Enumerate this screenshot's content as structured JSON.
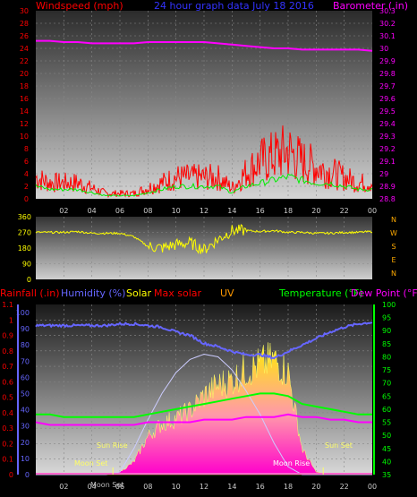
{
  "page": {
    "title": "24 hour graph data  July 18 2016"
  },
  "panel1": {
    "left_label": "Windspeed (mph)",
    "right_label": "Barometer (.in)",
    "left_ticks": [
      "0",
      "2",
      "4",
      "6",
      "8",
      "10",
      "12",
      "14",
      "16",
      "18",
      "20",
      "22",
      "24",
      "26",
      "28",
      "30"
    ],
    "right_ticks": [
      "28.8",
      "28.9",
      "29",
      "29.1",
      "29.2",
      "29.3",
      "29.4",
      "29.5",
      "29.6",
      "29.7",
      "29.8",
      "29.9",
      "30",
      "30.1",
      "30.2",
      "30.3"
    ],
    "x_ticks": [
      "02",
      "04",
      "06",
      "08",
      "10",
      "12",
      "14",
      "16",
      "18",
      "20",
      "22",
      "00"
    ]
  },
  "panel2": {
    "left_ticks": [
      "0",
      "90",
      "180",
      "270",
      "360"
    ],
    "compass": [
      "N",
      "W",
      "S",
      "E",
      "N"
    ]
  },
  "panel3": {
    "header_rainfall": "Rainfall (.in)",
    "header_humidity": "Humidity (%)",
    "header_solar": "Solar",
    "header_maxsolar": "Max solar",
    "header_uv": "UV",
    "header_temperature": "Temperature (°F)",
    "header_dewpoint": "Dew Point (°F)",
    "rain_ticks": [
      "0",
      "0.1",
      "0.2",
      "0.3",
      "0.4",
      "0.5",
      "0.6",
      "0.7",
      "0.8",
      "0.9",
      "1",
      "1.1"
    ],
    "hum_ticks": [
      "0",
      "10",
      "20",
      "30",
      "40",
      "50",
      "60",
      "70",
      "80",
      "90",
      "100"
    ],
    "temp_ticks": [
      "35",
      "40",
      "45",
      "50",
      "55",
      "60",
      "65",
      "70",
      "75",
      "80",
      "85",
      "90",
      "95",
      "100"
    ],
    "x_ticks": [
      "02",
      "04",
      "06",
      "08",
      "10",
      "12",
      "14",
      "16",
      "18",
      "20",
      "22",
      "00"
    ],
    "annotations": {
      "sun_rise": "Sun Rise",
      "sun_set": "Sun Set",
      "moon_set_left": "Moon Set",
      "moon_rise": "Moon Rise",
      "moon_set_x": "Moon Set"
    }
  },
  "colors": {
    "wind": "#ff0000",
    "wind_avg": "#00ee00",
    "barometer": "#ff00ff",
    "direction": "#ffff00",
    "humidity": "#6666ff",
    "temperature": "#00ff00",
    "dewpoint": "#ff00ff",
    "solar": "#ffff00",
    "maxsolar": "#ccccff",
    "uv": "#ff00ff",
    "rain": "#ff66cc"
  },
  "chart_data": [
    {
      "type": "line",
      "name": "wind_barometer",
      "x_hours": [
        0,
        1,
        2,
        3,
        4,
        5,
        6,
        7,
        8,
        9,
        10,
        11,
        12,
        13,
        14,
        15,
        16,
        17,
        18,
        19,
        20,
        21,
        22,
        23,
        24
      ],
      "series": [
        {
          "name": "Windspeed (mph)",
          "axis": "left",
          "values": [
            4,
            3,
            3,
            3,
            2,
            1,
            1,
            1,
            2,
            3,
            4,
            4,
            4,
            4,
            2,
            5,
            7,
            8,
            9,
            7,
            6,
            5,
            4,
            3,
            3
          ]
        },
        {
          "name": "avg",
          "axis": "left",
          "values": [
            2,
            1.5,
            1.5,
            1.5,
            1,
            0.5,
            0.5,
            0.5,
            1,
            1.5,
            2,
            2,
            2,
            2,
            1,
            2,
            2.5,
            3,
            3.5,
            3,
            2.5,
            2.5,
            2,
            1.5,
            1.5
          ]
        },
        {
          "name": "Barometer (.in)",
          "axis": "right",
          "values": [
            30.06,
            30.06,
            30.05,
            30.05,
            30.04,
            30.04,
            30.04,
            30.04,
            30.05,
            30.05,
            30.05,
            30.05,
            30.05,
            30.04,
            30.03,
            30.02,
            30.01,
            30.0,
            30.0,
            29.99,
            29.99,
            29.99,
            29.99,
            29.99,
            29.98
          ]
        }
      ],
      "ylim_left": [
        0,
        30
      ],
      "ylim_right": [
        28.8,
        30.3
      ]
    },
    {
      "type": "line",
      "name": "wind_direction",
      "x_hours": [
        0,
        1,
        2,
        3,
        4,
        5,
        6,
        7,
        8,
        9,
        10,
        11,
        12,
        13,
        14,
        15,
        16,
        17,
        18,
        19,
        20,
        21,
        22,
        23,
        24
      ],
      "series": [
        {
          "name": "direction",
          "values": [
            270,
            270,
            270,
            275,
            265,
            265,
            265,
            245,
            190,
            180,
            200,
            210,
            170,
            230,
            280,
            280,
            275,
            280,
            270,
            270,
            265,
            265,
            270,
            270,
            275
          ]
        }
      ],
      "ylim": [
        0,
        360
      ]
    },
    {
      "type": "area",
      "name": "weather",
      "x_hours": [
        0,
        1,
        2,
        3,
        4,
        5,
        6,
        7,
        8,
        9,
        10,
        11,
        12,
        13,
        14,
        15,
        16,
        17,
        18,
        19,
        20,
        21,
        22,
        23,
        24
      ],
      "series": [
        {
          "name": "Humidity (%)",
          "axis": "hum",
          "values": [
            92,
            92,
            92,
            92,
            92,
            92,
            93,
            93,
            92,
            91,
            88,
            86,
            81,
            79,
            76,
            74,
            74,
            72,
            76,
            80,
            84,
            88,
            91,
            93,
            94
          ]
        },
        {
          "name": "Temperature (°F)",
          "axis": "temp",
          "values": [
            58,
            58,
            57,
            57,
            57,
            57,
            57,
            57,
            58,
            59,
            60,
            61,
            62,
            63,
            64,
            65,
            66,
            66,
            65,
            62,
            61,
            60,
            59,
            58,
            58
          ]
        },
        {
          "name": "Dew Point (°F)",
          "axis": "temp",
          "values": [
            55,
            54,
            54,
            54,
            54,
            54,
            54,
            54,
            55,
            55,
            55,
            55,
            56,
            56,
            56,
            57,
            57,
            57,
            58,
            57,
            57,
            56,
            56,
            55,
            55
          ]
        },
        {
          "name": "Solar",
          "axis": "temp",
          "values": [
            35,
            35,
            35,
            35,
            35,
            35,
            36,
            40,
            50,
            55,
            57,
            60,
            66,
            70,
            72,
            76,
            78,
            80,
            75,
            45,
            36,
            35,
            35,
            35,
            35
          ]
        },
        {
          "name": "Max solar",
          "axis": "temp",
          "values": [
            35,
            35,
            35,
            35,
            35,
            35,
            36,
            45,
            56,
            66,
            74,
            79,
            81,
            80,
            75,
            67,
            58,
            47,
            38,
            35,
            35,
            35,
            35,
            35,
            35
          ]
        }
      ],
      "ylim_rain": [
        0,
        1.1
      ],
      "ylim_hum": [
        0,
        100
      ],
      "ylim_temp": [
        35,
        100
      ]
    }
  ]
}
